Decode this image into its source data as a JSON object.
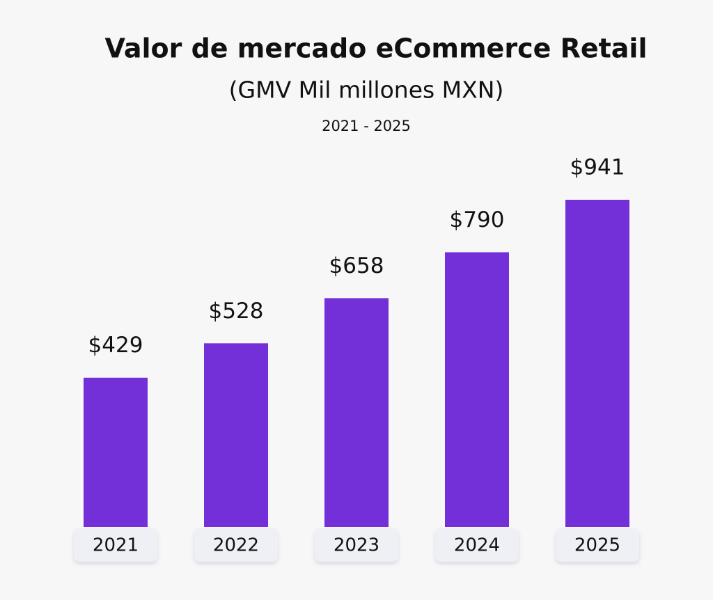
{
  "chart_data": {
    "type": "bar",
    "title": "Valor de mercado eCommerce Retail",
    "subtitle": "(GMV Mil millones MXN)",
    "period": "2021 - 2025",
    "categories": [
      "2021",
      "2022",
      "2023",
      "2024",
      "2025"
    ],
    "values": [
      429,
      528,
      658,
      790,
      941
    ],
    "value_labels": [
      "$429",
      "$528",
      "$658",
      "$790",
      "$941"
    ],
    "color": "#7430d8"
  }
}
